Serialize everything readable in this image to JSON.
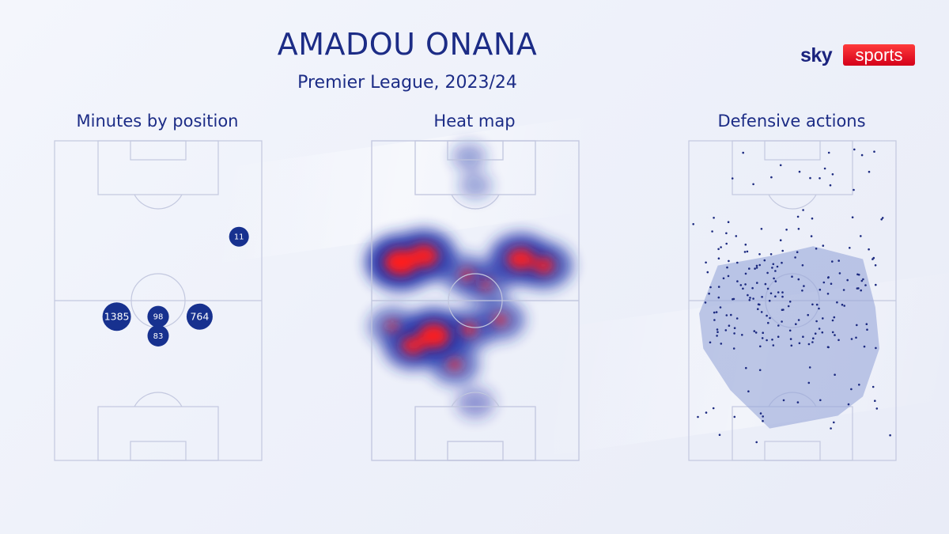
{
  "header": {
    "title": "AMADOU ONANA",
    "subtitle": "Premier League, 2023/24"
  },
  "logo": {
    "sky": "sky",
    "sports": "sports"
  },
  "colors": {
    "navy": "#1c2c86",
    "marker": "#17318f",
    "heat_red": "#ff1f1f",
    "heat_blue": "#1d2fa8",
    "polygon": "#97a6d8",
    "pitch_lines": "#c3c8df"
  },
  "chart_data": [
    {
      "type": "scatter",
      "title": "Minutes by position",
      "points": [
        {
          "x": 0.89,
          "y": 0.7,
          "label": "11",
          "value": 11
        },
        {
          "x": 0.3,
          "y": 0.45,
          "label": "1385",
          "value": 1385
        },
        {
          "x": 0.5,
          "y": 0.45,
          "label": "98",
          "value": 98
        },
        {
          "x": 0.7,
          "y": 0.45,
          "label": "764",
          "value": 764
        },
        {
          "x": 0.5,
          "y": 0.39,
          "label": "83",
          "value": 83
        }
      ]
    },
    {
      "type": "heatmap",
      "title": "Heat map",
      "hotspots": [
        {
          "x": 0.14,
          "y": 0.62,
          "intensity": 1.0
        },
        {
          "x": 0.25,
          "y": 0.64,
          "intensity": 0.9
        },
        {
          "x": 0.72,
          "y": 0.63,
          "intensity": 0.85
        },
        {
          "x": 0.83,
          "y": 0.61,
          "intensity": 0.7
        },
        {
          "x": 0.46,
          "y": 0.58,
          "intensity": 0.5
        },
        {
          "x": 0.55,
          "y": 0.55,
          "intensity": 0.45
        },
        {
          "x": 0.3,
          "y": 0.39,
          "intensity": 0.95
        },
        {
          "x": 0.2,
          "y": 0.36,
          "intensity": 0.75
        },
        {
          "x": 0.47,
          "y": 0.41,
          "intensity": 0.55
        },
        {
          "x": 0.62,
          "y": 0.44,
          "intensity": 0.5
        },
        {
          "x": 0.4,
          "y": 0.3,
          "intensity": 0.5
        },
        {
          "x": 0.1,
          "y": 0.42,
          "intensity": 0.45
        },
        {
          "x": 0.5,
          "y": 0.18,
          "intensity": 0.2
        },
        {
          "x": 0.47,
          "y": 0.95,
          "intensity": 0.12
        },
        {
          "x": 0.5,
          "y": 0.86,
          "intensity": 0.1
        }
      ]
    },
    {
      "type": "scatter",
      "title": "Defensive actions",
      "area": [
        [
          0.39,
          0.1
        ],
        [
          0.72,
          0.14
        ],
        [
          0.84,
          0.2
        ],
        [
          0.92,
          0.35
        ],
        [
          0.9,
          0.48
        ],
        [
          0.84,
          0.63
        ],
        [
          0.6,
          0.67
        ],
        [
          0.4,
          0.64
        ],
        [
          0.14,
          0.61
        ],
        [
          0.05,
          0.46
        ],
        [
          0.07,
          0.35
        ],
        [
          0.2,
          0.22
        ]
      ],
      "seed": 7
    }
  ]
}
